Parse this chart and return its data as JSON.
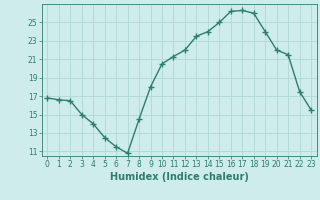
{
  "x": [
    0,
    1,
    2,
    3,
    4,
    5,
    6,
    7,
    8,
    9,
    10,
    11,
    12,
    13,
    14,
    15,
    16,
    17,
    18,
    19,
    20,
    21,
    22,
    23
  ],
  "y": [
    16.8,
    16.6,
    16.5,
    15.0,
    14.0,
    12.5,
    11.5,
    10.8,
    14.5,
    18.0,
    20.5,
    21.3,
    22.0,
    23.5,
    24.0,
    25.0,
    26.2,
    26.3,
    26.0,
    24.0,
    22.0,
    21.5,
    17.5,
    15.5
  ],
  "line_color": "#2e7d6e",
  "marker": "+",
  "marker_size": 4,
  "linewidth": 1.0,
  "bg_color": "#ceecea",
  "grid_color": "#b0d8d5",
  "xlabel": "Humidex (Indice chaleur)",
  "ylim": [
    10.5,
    27.0
  ],
  "xlim": [
    -0.5,
    23.5
  ],
  "yticks": [
    11,
    13,
    15,
    17,
    19,
    21,
    23,
    25
  ],
  "xticks": [
    0,
    1,
    2,
    3,
    4,
    5,
    6,
    7,
    8,
    9,
    10,
    11,
    12,
    13,
    14,
    15,
    16,
    17,
    18,
    19,
    20,
    21,
    22,
    23
  ],
  "tick_fontsize": 5.5,
  "label_fontsize": 7.0
}
